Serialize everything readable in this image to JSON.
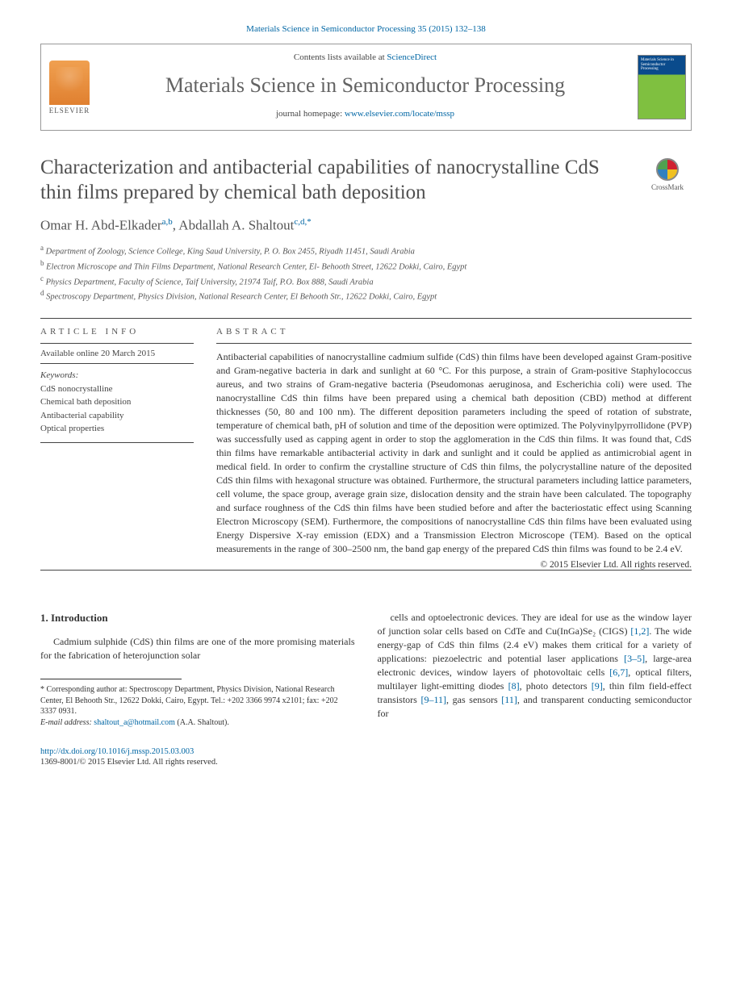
{
  "citation": "Materials Science in Semiconductor Processing 35 (2015) 132–138",
  "header": {
    "contents_prefix": "Contents lists available at ",
    "contents_link": "ScienceDirect",
    "journal": "Materials Science in Semiconductor Processing",
    "homepage_prefix": "journal homepage: ",
    "homepage_url": "www.elsevier.com/locate/mssp",
    "publisher": "ELSEVIER",
    "cover_text": "Materials Science in Semiconductor Processing"
  },
  "crossmark": "CrossMark",
  "title": "Characterization and antibacterial capabilities of nanocrystalline CdS thin films prepared by chemical bath deposition",
  "authors_html": "Omar H. Abd-Elkader",
  "author1_sup": "a,b",
  "author2": ", Abdallah A. Shaltout",
  "author2_sup": "c,d,",
  "author2_star": "*",
  "affiliations": {
    "a": "Department of Zoology, Science College, King Saud University, P. O. Box 2455, Riyadh 11451, Saudi Arabia",
    "b": "Electron Microscope and Thin Films Department, National Research Center, El- Behooth Street, 12622 Dokki, Cairo, Egypt",
    "c": "Physics Department, Faculty of Science, Taif University, 21974 Taif, P.O. Box 888, Saudi Arabia",
    "d": "Spectroscopy Department, Physics Division, National Research Center, El Behooth Str., 12622 Dokki, Cairo, Egypt"
  },
  "info": {
    "heading": "article info",
    "online": "Available online 20 March 2015",
    "kw_label": "Keywords:",
    "keywords": [
      "CdS nonocrystalline",
      "Chemical bath deposition",
      "Antibacterial capability",
      "Optical properties"
    ]
  },
  "abstract": {
    "heading": "abstract",
    "text": "Antibacterial capabilities of nanocrystalline cadmium sulfide (CdS) thin films have been developed against Gram-positive and Gram-negative bacteria in dark and sunlight at 60 °C. For this purpose, a strain of Gram-positive Staphylococcus aureus, and two strains of Gram-negative bacteria (Pseudomonas aeruginosa, and Escherichia coli) were used. The nanocrystalline CdS thin films have been prepared using a chemical bath deposition (CBD) method at different thicknesses (50, 80 and 100 nm). The different deposition parameters including the speed of rotation of substrate, temperature of chemical bath, pH of solution and time of the deposition were optimized. The Polyvinylpyrrollidone (PVP) was successfully used as capping agent in order to stop the agglomeration in the CdS thin films. It was found that, CdS thin films have remarkable antibacterial activity in dark and sunlight and it could be applied as antimicrobial agent in medical field. In order to confirm the crystalline structure of CdS thin films, the polycrystalline nature of the deposited CdS thin films with hexagonal structure was obtained. Furthermore, the structural parameters including lattice parameters, cell volume, the space group, average grain size, dislocation density and the strain have been calculated. The topography and surface roughness of the CdS thin films have been studied before and after the bacteriostatic effect using Scanning Electron Microscopy (SEM). Furthermore, the compositions of nanocrystalline CdS thin films have been evaluated using Energy Dispersive X-ray emission (EDX) and a Transmission Electron Microscope (TEM). Based on the optical measurements in the range of 300–2500 nm, the band gap energy of the prepared CdS thin films was found to be 2.4 eV.",
    "copyright": "© 2015 Elsevier Ltd. All rights reserved."
  },
  "intro": {
    "heading": "1.  Introduction",
    "col1": "Cadmium sulphide (CdS) thin films are one of the more promising materials for the fabrication of heterojunction solar",
    "col2_part1": "cells and optoelectronic devices. They are ideal for use as the window layer of junction solar cells based on CdTe and Cu(InGa)Se₂ (CIGS) ",
    "col2_ref1": "[1,2]",
    "col2_part2": ". The wide energy-gap of CdS thin films (2.4 eV) makes them critical for a variety of applications: piezoelectric and potential laser applications ",
    "col2_ref2": "[3–5]",
    "col2_part3": ", large-area electronic devices, window layers of photovoltaic cells ",
    "col2_ref3": "[6,7]",
    "col2_part4": ", optical filters, multilayer light-emitting diodes ",
    "col2_ref4": "[8]",
    "col2_part5": ", photo detectors ",
    "col2_ref5": "[9]",
    "col2_part6": ", thin film field-effect transistors ",
    "col2_ref6": "[9–11]",
    "col2_part7": ", gas sensors ",
    "col2_ref7": "[11]",
    "col2_part8": ", and transparent conducting semiconductor for"
  },
  "footnote": {
    "corr": "* Corresponding author at: Spectroscopy Department, Physics Division, National Research Center, El Behooth Str., 12622 Dokki, Cairo, Egypt. Tel.: +202 3366 9974 x2101; fax: +202 3337 0931.",
    "email_label": "E-mail address: ",
    "email": "shaltout_a@hotmail.com",
    "email_who": " (A.A. Shaltout)."
  },
  "doi": "http://dx.doi.org/10.1016/j.mssp.2015.03.003",
  "issn": "1369-8001/© 2015 Elsevier Ltd. All rights reserved.",
  "colors": {
    "link": "#0066a4",
    "heading": "#505050",
    "text": "#333333"
  }
}
